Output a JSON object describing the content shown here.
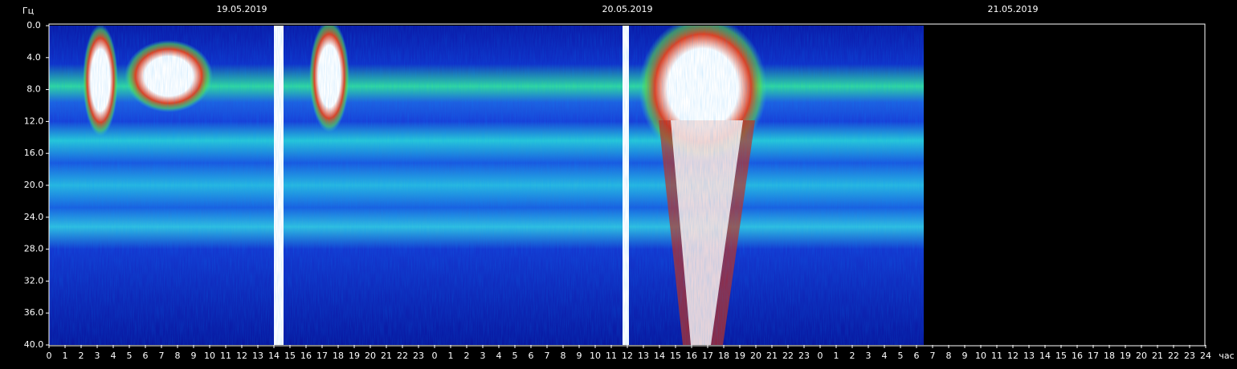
{
  "chart_data": {
    "type": "spectrogram",
    "y_label": "Гц",
    "x_label": "час",
    "ylim": [
      0,
      40
    ],
    "yticks": [
      {
        "value": 0,
        "label": "0.0"
      },
      {
        "value": 4,
        "label": "4.0"
      },
      {
        "value": 8,
        "label": "8.0"
      },
      {
        "value": 12,
        "label": "12.0"
      },
      {
        "value": 16,
        "label": "16.0"
      },
      {
        "value": 20,
        "label": "20.0"
      },
      {
        "value": 24,
        "label": "24.0"
      },
      {
        "value": 28,
        "label": "28.0"
      },
      {
        "value": 32,
        "label": "32.0"
      },
      {
        "value": 36,
        "label": "36.0"
      },
      {
        "value": 40,
        "label": "40.0"
      }
    ],
    "xlim": [
      0,
      72
    ],
    "xticks": [
      0,
      1,
      2,
      3,
      4,
      5,
      6,
      7,
      8,
      9,
      10,
      11,
      12,
      13,
      14,
      15,
      16,
      17,
      18,
      19,
      20,
      21,
      22,
      23,
      {
        "value": 24,
        "label": "0"
      },
      {
        "value": 25,
        "label": "1"
      },
      {
        "value": 26,
        "label": "2"
      },
      {
        "value": 27,
        "label": "3"
      },
      {
        "value": 28,
        "label": "4"
      },
      {
        "value": 29,
        "label": "5"
      },
      {
        "value": 30,
        "label": "6"
      },
      {
        "value": 31,
        "label": "7"
      },
      {
        "value": 32,
        "label": "8"
      },
      {
        "value": 33,
        "label": "9"
      },
      {
        "value": 34,
        "label": "10"
      },
      {
        "value": 35,
        "label": "11"
      },
      {
        "value": 36,
        "label": "12"
      },
      {
        "value": 37,
        "label": "13"
      },
      {
        "value": 38,
        "label": "14"
      },
      {
        "value": 39,
        "label": "15"
      },
      {
        "value": 40,
        "label": "16"
      },
      {
        "value": 41,
        "label": "17"
      },
      {
        "value": 42,
        "label": "18"
      },
      {
        "value": 43,
        "label": "19"
      },
      {
        "value": 44,
        "label": "20"
      },
      {
        "value": 45,
        "label": "21"
      },
      {
        "value": 46,
        "label": "22"
      },
      {
        "value": 47,
        "label": "23"
      },
      {
        "value": 48,
        "label": "0"
      },
      {
        "value": 49,
        "label": "1"
      },
      {
        "value": 50,
        "label": "2"
      },
      {
        "value": 51,
        "label": "3"
      },
      {
        "value": 52,
        "label": "4"
      },
      {
        "value": 53,
        "label": "5"
      },
      {
        "value": 54,
        "label": "6"
      },
      {
        "value": 55,
        "label": "7"
      },
      {
        "value": 56,
        "label": "8"
      },
      {
        "value": 57,
        "label": "9"
      },
      {
        "value": 58,
        "label": "10"
      },
      {
        "value": 59,
        "label": "11"
      },
      {
        "value": 60,
        "label": "12"
      },
      {
        "value": 61,
        "label": "13"
      },
      {
        "value": 62,
        "label": "14"
      },
      {
        "value": 63,
        "label": "15"
      },
      {
        "value": 64,
        "label": "16"
      },
      {
        "value": 65,
        "label": "17"
      },
      {
        "value": 66,
        "label": "18"
      },
      {
        "value": 67,
        "label": "19"
      },
      {
        "value": 68,
        "label": "20"
      },
      {
        "value": 69,
        "label": "21"
      },
      {
        "value": 70,
        "label": "22"
      },
      {
        "value": 71,
        "label": "23"
      },
      {
        "value": 72,
        "label": "24"
      }
    ],
    "date_labels": [
      {
        "value": 12,
        "label": "19.05.2019"
      },
      {
        "value": 36,
        "label": "20.05.2019"
      },
      {
        "value": 60,
        "label": "21.05.2019"
      }
    ]
  }
}
